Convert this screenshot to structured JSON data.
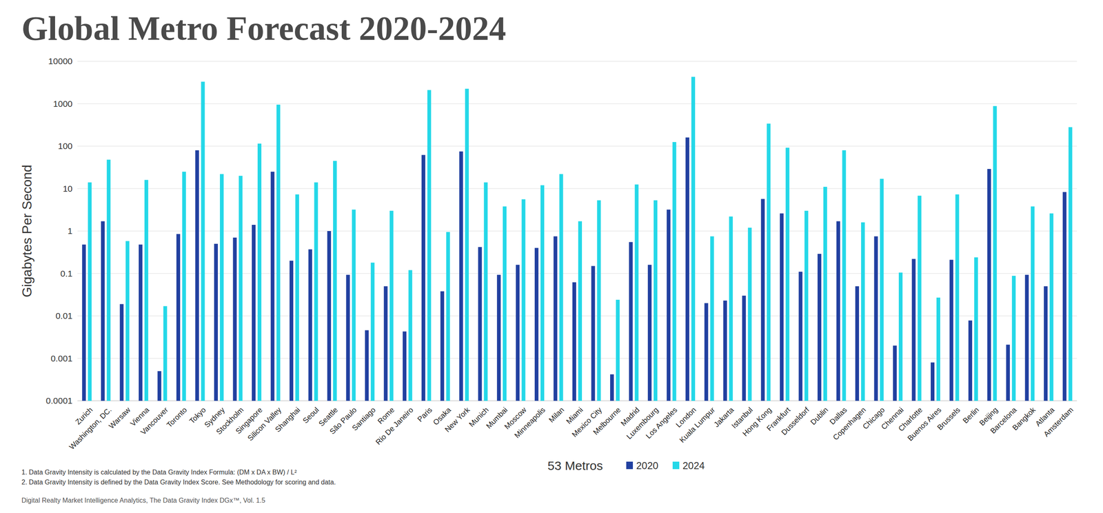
{
  "chart_data": {
    "type": "bar",
    "title": "Global Metro Forecast 2020-2024",
    "y_label": "Gigabytes Per Second",
    "x_label": "53 Metros",
    "categories": [
      "Zurich",
      "Washington, DC.",
      "Warsaw",
      "Vienna",
      "Vancouver",
      "Toronto",
      "Tokyo",
      "Sydney",
      "Stockholm",
      "Singapore",
      "Silicon Valley",
      "Shanghai",
      "Seoul",
      "Seattle",
      "São Paulo",
      "Santiago",
      "Rome",
      "Rio De Janeiro",
      "Paris",
      "Osaka",
      "New York",
      "Munich",
      "Mumbai",
      "Moscow",
      "Minneapolis",
      "Milan",
      "Miami",
      "Mexico City",
      "Melbourne",
      "Madrid",
      "Luxembourg",
      "Los Angeles",
      "London",
      "Kuala Lumpur",
      "Jakarta",
      "Istanbul",
      "Hong Kong",
      "Frankfurt",
      "Dusseldorf",
      "Dublin",
      "Dallas",
      "Copenhagen",
      "Chicago",
      "Chennai",
      "Charlotte",
      "Buenos Aires",
      "Brussels",
      "Berlin",
      "Beijing",
      "Barcelona",
      "Bangkok",
      "Atlanta",
      "Amsterdam"
    ],
    "series": [
      {
        "name": "2020",
        "color": "#2140a0",
        "values": [
          0.48,
          1.7,
          0.019,
          0.48,
          0.0005,
          0.85,
          80,
          0.5,
          0.7,
          1.4,
          25,
          0.2,
          0.37,
          1.0,
          0.093,
          0.0046,
          0.05,
          0.0043,
          62,
          0.038,
          75,
          0.42,
          0.093,
          0.16,
          0.4,
          0.75,
          0.062,
          0.15,
          0.00042,
          0.55,
          0.16,
          3.2,
          160,
          0.02,
          0.023,
          0.03,
          5.7,
          2.6,
          0.11,
          0.29,
          1.7,
          0.05,
          0.75,
          0.002,
          0.22,
          0.0008,
          0.21,
          0.0078,
          29,
          0.0021,
          0.093,
          0.05,
          8.3
        ]
      },
      {
        "name": "2024",
        "color": "#24d8e8",
        "values": [
          14,
          48,
          0.58,
          16,
          0.017,
          25,
          3300,
          22,
          20,
          115,
          950,
          7.3,
          14,
          45,
          3.2,
          0.18,
          3.0,
          0.12,
          2100,
          0.95,
          2250,
          14,
          3.8,
          5.6,
          12,
          22,
          1.7,
          5.3,
          0.024,
          12.5,
          5.3,
          125,
          4300,
          0.75,
          2.2,
          1.2,
          340,
          92,
          3.0,
          11,
          80,
          1.6,
          17,
          0.105,
          6.8,
          0.027,
          7.3,
          0.24,
          880,
          0.088,
          3.8,
          2.6,
          280
        ]
      }
    ],
    "ylim": [
      0.0001,
      10000
    ],
    "yticks": [
      0.0001,
      0.001,
      0.01,
      0.1,
      1,
      10,
      100,
      1000,
      10000
    ],
    "log": "y",
    "grid": true,
    "legend": "bottom",
    "annotations": [
      "1. Data Gravity Intensity is calculated by the Data Gravity Index Formula: (DM x DA x BW) / L²",
      "2. Data Gravity Intensity is defined by the Data Gravity Index Score. See Methodology for scoring and data.",
      "Digital Realty Market Intelligence Analytics, The Data Gravity Index DGx™, Vol. 1.5"
    ]
  }
}
